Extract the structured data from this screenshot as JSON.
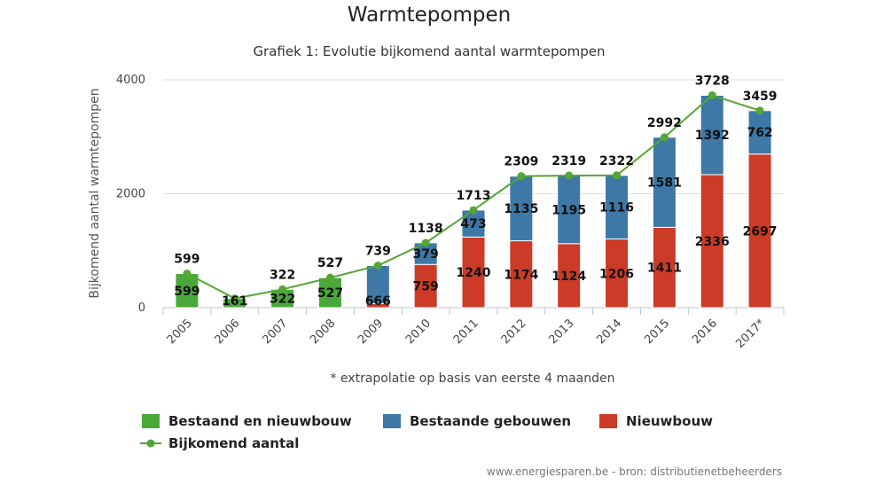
{
  "title": "Warmtepompen",
  "subtitle": "Grafiek 1: Evolutie bijkomend aantal warmtepompen",
  "footnote": "* extrapolatie op basis van eerste 4 maanden",
  "source": "www.energiesparen.be - bron: distributienetbeheerders",
  "colors": {
    "bestaand_en_nieuwbouw": "#4aa83a",
    "bestaande_gebouwen": "#3d78a6",
    "nieuwbouw": "#cc3b27",
    "bijkomend_aantal": "#55a634"
  },
  "chart_data": {
    "type": "bar",
    "stacked": true,
    "categories": [
      "2005",
      "2006",
      "2007",
      "2008",
      "2009",
      "2010",
      "2011",
      "2012",
      "2013",
      "2014",
      "2015",
      "2016",
      "2017*"
    ],
    "ylabel": "Bijkomend aantal warmtepompen",
    "xlabel": "",
    "ylim": [
      0,
      4000
    ],
    "yticks": [
      "0",
      "2000",
      "4000"
    ],
    "grid": true,
    "legend_position": "bottom",
    "series": [
      {
        "name": "Bestaand en nieuwbouw",
        "kind": "bar",
        "values": [
          599,
          161,
          322,
          527,
          null,
          null,
          null,
          null,
          null,
          null,
          null,
          null,
          null
        ]
      },
      {
        "name": "Nieuwbouw",
        "kind": "bar",
        "values": [
          null,
          null,
          null,
          null,
          73,
          759,
          1240,
          1174,
          1124,
          1206,
          1411,
          2336,
          2697
        ]
      },
      {
        "name": "Bestaande gebouwen",
        "kind": "bar",
        "values": [
          null,
          null,
          null,
          null,
          666,
          379,
          473,
          1135,
          1195,
          1116,
          1581,
          1392,
          762
        ]
      },
      {
        "name": "Bijkomend aantal",
        "kind": "line",
        "values": [
          599,
          161,
          322,
          527,
          739,
          1138,
          1713,
          2309,
          2319,
          2322,
          2992,
          3728,
          3459
        ]
      }
    ],
    "bar_labels": {
      "inner": [
        "599",
        "161",
        "322",
        "527",
        "666",
        "759",
        "1240",
        "1174",
        "1124",
        "1206",
        "1411",
        "2336",
        "2697"
      ],
      "upper": [
        "",
        "",
        "",
        "",
        "",
        "379",
        "473",
        "1135",
        "1195",
        "1116",
        "1581",
        "1392",
        "762"
      ],
      "total": [
        "599",
        "",
        "322",
        "527",
        "739",
        "1138",
        "1713",
        "2309",
        "2319",
        "2322",
        "2992",
        "3728",
        "3459"
      ]
    }
  },
  "legend": [
    {
      "label": "Bestaand en nieuwbouw",
      "kind": "square"
    },
    {
      "label": "Bestaande gebouwen",
      "kind": "square"
    },
    {
      "label": "Nieuwbouw",
      "kind": "square"
    },
    {
      "label": "Bijkomend aantal",
      "kind": "line"
    }
  ]
}
